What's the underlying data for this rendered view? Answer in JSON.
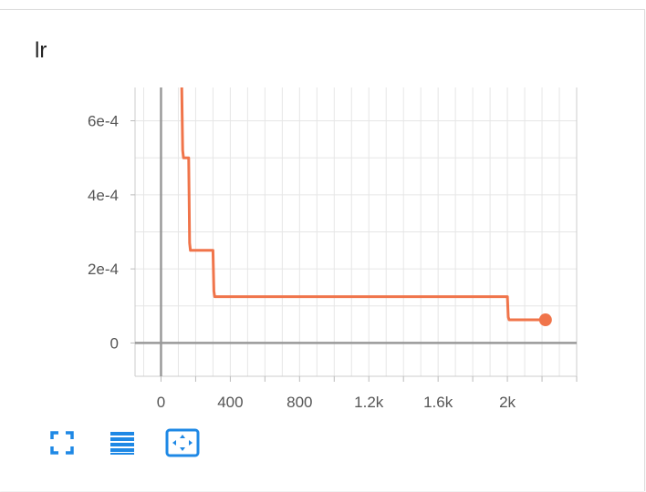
{
  "card": {
    "title": "lr"
  },
  "toolbar": {
    "buttons": [
      {
        "icon": "fullscreen-icon"
      },
      {
        "icon": "toggle-log-scale-icon"
      },
      {
        "icon": "fit-domain-icon"
      }
    ]
  },
  "colors": {
    "series": "#f0744a",
    "grid": "#e6e6e6",
    "zero_axis": "#999999",
    "icon_blue": "#1e88e5",
    "tick_text": "#555555"
  },
  "chart_data": {
    "type": "line",
    "title": "lr",
    "xlabel": "",
    "ylabel": "",
    "xlim": [
      -150,
      2400
    ],
    "ylim": [
      -9e-05,
      0.00069
    ],
    "x_ticks": [
      0,
      400,
      800,
      1200,
      1600,
      2000
    ],
    "x_tick_labels": [
      "0",
      "400",
      "800",
      "1.2k",
      "1.6k",
      "2k"
    ],
    "y_ticks": [
      0,
      0.0002,
      0.0004,
      0.0006
    ],
    "y_tick_labels": [
      "0",
      "2e-4",
      "4e-4",
      "6e-4"
    ],
    "grid": true,
    "series": [
      {
        "x": [
          120,
          125,
          130,
          160,
          165,
          170,
          300,
          305,
          310,
          2000,
          2005,
          2010,
          2220
        ],
        "y": [
          0.00069,
          0.00052,
          0.0005,
          0.0005,
          0.00027,
          0.00025,
          0.00025,
          0.00014,
          0.000125,
          0.000125,
          7e-05,
          6.25e-05,
          6.25e-05
        ]
      }
    ],
    "last_point": {
      "x": 2220,
      "y": 6.25e-05
    }
  }
}
